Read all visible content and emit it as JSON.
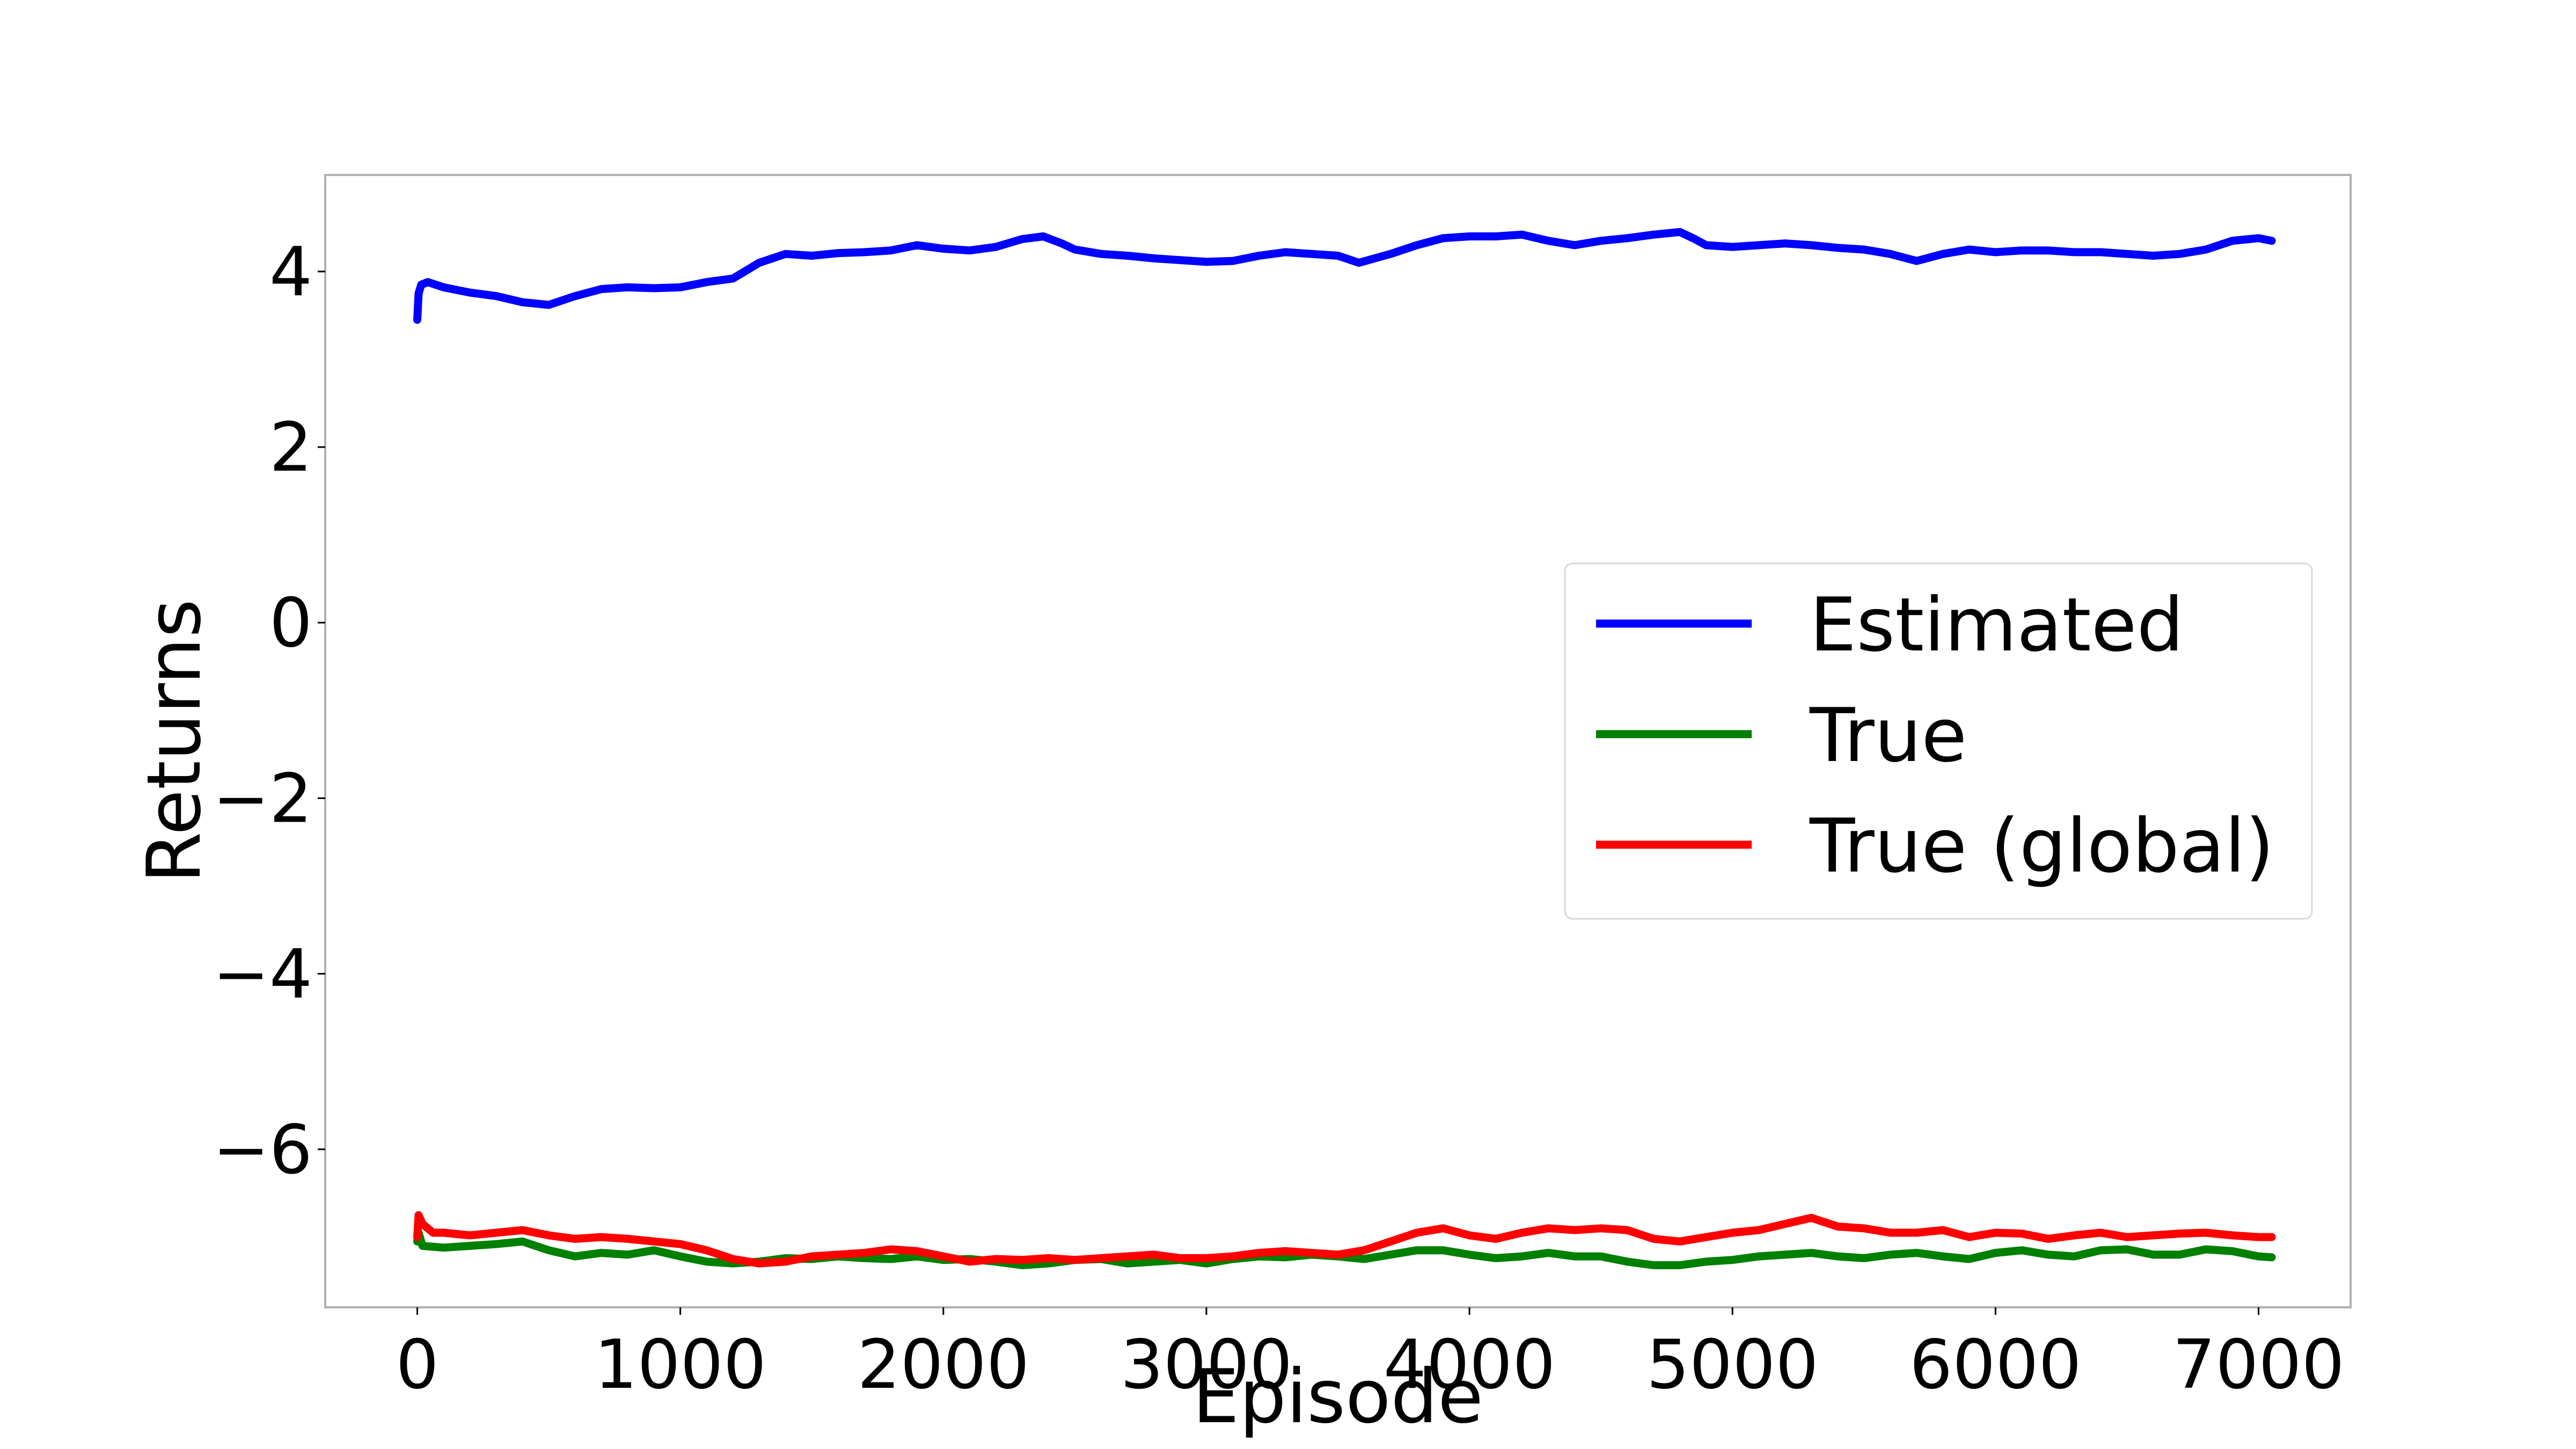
{
  "chart_data": {
    "type": "line",
    "title": "",
    "xlabel": "Episode",
    "ylabel": "Returns",
    "xlim": [
      -350,
      7350
    ],
    "ylim": [
      -7.8,
      5.1
    ],
    "xticks": [
      0,
      1000,
      2000,
      3000,
      4000,
      5000,
      6000,
      7000
    ],
    "xtick_labels": [
      "0",
      "1000",
      "2000",
      "3000",
      "4000",
      "5000",
      "6000",
      "7000"
    ],
    "yticks": [
      4,
      2,
      0,
      -2,
      -4,
      -6
    ],
    "ytick_labels": [
      "4",
      "2",
      "0",
      "−2",
      "−4",
      "−6"
    ],
    "grid": false,
    "legend_position": "center-right",
    "series": [
      {
        "name": "Estimated",
        "color": "#0000ff",
        "points": [
          [
            0,
            3.45
          ],
          [
            5,
            3.75
          ],
          [
            15,
            3.85
          ],
          [
            40,
            3.88
          ],
          [
            100,
            3.82
          ],
          [
            200,
            3.76
          ],
          [
            300,
            3.72
          ],
          [
            400,
            3.65
          ],
          [
            500,
            3.62
          ],
          [
            600,
            3.72
          ],
          [
            700,
            3.8
          ],
          [
            800,
            3.82
          ],
          [
            900,
            3.81
          ],
          [
            1000,
            3.82
          ],
          [
            1100,
            3.88
          ],
          [
            1200,
            3.92
          ],
          [
            1300,
            4.1
          ],
          [
            1400,
            4.2
          ],
          [
            1500,
            4.18
          ],
          [
            1600,
            4.21
          ],
          [
            1700,
            4.22
          ],
          [
            1800,
            4.24
          ],
          [
            1900,
            4.3
          ],
          [
            2000,
            4.26
          ],
          [
            2100,
            4.24
          ],
          [
            2200,
            4.28
          ],
          [
            2300,
            4.37
          ],
          [
            2380,
            4.4
          ],
          [
            2450,
            4.32
          ],
          [
            2500,
            4.25
          ],
          [
            2600,
            4.2
          ],
          [
            2700,
            4.18
          ],
          [
            2800,
            4.15
          ],
          [
            2900,
            4.13
          ],
          [
            3000,
            4.11
          ],
          [
            3100,
            4.12
          ],
          [
            3200,
            4.18
          ],
          [
            3300,
            4.22
          ],
          [
            3400,
            4.2
          ],
          [
            3500,
            4.18
          ],
          [
            3580,
            4.1
          ],
          [
            3700,
            4.2
          ],
          [
            3800,
            4.3
          ],
          [
            3900,
            4.38
          ],
          [
            4000,
            4.4
          ],
          [
            4100,
            4.4
          ],
          [
            4200,
            4.42
          ],
          [
            4300,
            4.35
          ],
          [
            4400,
            4.3
          ],
          [
            4500,
            4.35
          ],
          [
            4600,
            4.38
          ],
          [
            4700,
            4.42
          ],
          [
            4800,
            4.45
          ],
          [
            4850,
            4.38
          ],
          [
            4900,
            4.3
          ],
          [
            5000,
            4.28
          ],
          [
            5100,
            4.3
          ],
          [
            5200,
            4.32
          ],
          [
            5300,
            4.3
          ],
          [
            5400,
            4.27
          ],
          [
            5500,
            4.25
          ],
          [
            5600,
            4.2
          ],
          [
            5700,
            4.12
          ],
          [
            5800,
            4.2
          ],
          [
            5900,
            4.25
          ],
          [
            6000,
            4.22
          ],
          [
            6100,
            4.24
          ],
          [
            6200,
            4.24
          ],
          [
            6300,
            4.22
          ],
          [
            6400,
            4.22
          ],
          [
            6500,
            4.2
          ],
          [
            6600,
            4.18
          ],
          [
            6700,
            4.2
          ],
          [
            6800,
            4.25
          ],
          [
            6900,
            4.35
          ],
          [
            7000,
            4.38
          ],
          [
            7050,
            4.35
          ]
        ]
      },
      {
        "name": "True",
        "color": "#008000",
        "points": [
          [
            0,
            -7.05
          ],
          [
            5,
            -6.95
          ],
          [
            20,
            -7.1
          ],
          [
            100,
            -7.12
          ],
          [
            200,
            -7.1
          ],
          [
            300,
            -7.08
          ],
          [
            400,
            -7.05
          ],
          [
            500,
            -7.15
          ],
          [
            600,
            -7.22
          ],
          [
            700,
            -7.18
          ],
          [
            800,
            -7.2
          ],
          [
            900,
            -7.15
          ],
          [
            1000,
            -7.22
          ],
          [
            1100,
            -7.28
          ],
          [
            1200,
            -7.3
          ],
          [
            1300,
            -7.28
          ],
          [
            1400,
            -7.24
          ],
          [
            1500,
            -7.25
          ],
          [
            1600,
            -7.22
          ],
          [
            1700,
            -7.24
          ],
          [
            1800,
            -7.25
          ],
          [
            1900,
            -7.22
          ],
          [
            2000,
            -7.26
          ],
          [
            2100,
            -7.25
          ],
          [
            2200,
            -7.28
          ],
          [
            2300,
            -7.32
          ],
          [
            2400,
            -7.3
          ],
          [
            2500,
            -7.26
          ],
          [
            2600,
            -7.25
          ],
          [
            2700,
            -7.3
          ],
          [
            2800,
            -7.28
          ],
          [
            2900,
            -7.26
          ],
          [
            3000,
            -7.3
          ],
          [
            3100,
            -7.25
          ],
          [
            3200,
            -7.22
          ],
          [
            3300,
            -7.23
          ],
          [
            3400,
            -7.2
          ],
          [
            3500,
            -7.22
          ],
          [
            3600,
            -7.25
          ],
          [
            3700,
            -7.2
          ],
          [
            3800,
            -7.15
          ],
          [
            3900,
            -7.15
          ],
          [
            4000,
            -7.2
          ],
          [
            4100,
            -7.24
          ],
          [
            4200,
            -7.22
          ],
          [
            4300,
            -7.18
          ],
          [
            4400,
            -7.22
          ],
          [
            4500,
            -7.22
          ],
          [
            4600,
            -7.28
          ],
          [
            4700,
            -7.32
          ],
          [
            4800,
            -7.32
          ],
          [
            4900,
            -7.28
          ],
          [
            5000,
            -7.26
          ],
          [
            5100,
            -7.22
          ],
          [
            5200,
            -7.2
          ],
          [
            5300,
            -7.18
          ],
          [
            5400,
            -7.22
          ],
          [
            5500,
            -7.24
          ],
          [
            5600,
            -7.2
          ],
          [
            5700,
            -7.18
          ],
          [
            5800,
            -7.22
          ],
          [
            5900,
            -7.25
          ],
          [
            6000,
            -7.18
          ],
          [
            6100,
            -7.15
          ],
          [
            6200,
            -7.2
          ],
          [
            6300,
            -7.22
          ],
          [
            6400,
            -7.15
          ],
          [
            6500,
            -7.14
          ],
          [
            6600,
            -7.2
          ],
          [
            6700,
            -7.2
          ],
          [
            6800,
            -7.14
          ],
          [
            6900,
            -7.16
          ],
          [
            7000,
            -7.22
          ],
          [
            7050,
            -7.23
          ]
        ]
      },
      {
        "name": "True (global)",
        "color": "#ff0000",
        "points": [
          [
            0,
            -7.0
          ],
          [
            5,
            -6.75
          ],
          [
            20,
            -6.85
          ],
          [
            60,
            -6.95
          ],
          [
            100,
            -6.95
          ],
          [
            200,
            -6.98
          ],
          [
            300,
            -6.95
          ],
          [
            400,
            -6.92
          ],
          [
            500,
            -6.98
          ],
          [
            600,
            -7.02
          ],
          [
            700,
            -7.0
          ],
          [
            800,
            -7.02
          ],
          [
            900,
            -7.05
          ],
          [
            1000,
            -7.08
          ],
          [
            1100,
            -7.15
          ],
          [
            1200,
            -7.25
          ],
          [
            1300,
            -7.3
          ],
          [
            1400,
            -7.28
          ],
          [
            1500,
            -7.22
          ],
          [
            1600,
            -7.2
          ],
          [
            1700,
            -7.18
          ],
          [
            1800,
            -7.14
          ],
          [
            1900,
            -7.16
          ],
          [
            2000,
            -7.22
          ],
          [
            2100,
            -7.28
          ],
          [
            2200,
            -7.25
          ],
          [
            2300,
            -7.26
          ],
          [
            2400,
            -7.24
          ],
          [
            2500,
            -7.26
          ],
          [
            2600,
            -7.24
          ],
          [
            2700,
            -7.22
          ],
          [
            2800,
            -7.2
          ],
          [
            2900,
            -7.24
          ],
          [
            3000,
            -7.24
          ],
          [
            3100,
            -7.22
          ],
          [
            3200,
            -7.18
          ],
          [
            3300,
            -7.16
          ],
          [
            3400,
            -7.18
          ],
          [
            3500,
            -7.2
          ],
          [
            3600,
            -7.15
          ],
          [
            3700,
            -7.05
          ],
          [
            3800,
            -6.95
          ],
          [
            3900,
            -6.9
          ],
          [
            4000,
            -6.98
          ],
          [
            4100,
            -7.02
          ],
          [
            4200,
            -6.95
          ],
          [
            4300,
            -6.9
          ],
          [
            4400,
            -6.92
          ],
          [
            4500,
            -6.9
          ],
          [
            4600,
            -6.92
          ],
          [
            4700,
            -7.02
          ],
          [
            4800,
            -7.05
          ],
          [
            4900,
            -7.0
          ],
          [
            5000,
            -6.95
          ],
          [
            5100,
            -6.92
          ],
          [
            5200,
            -6.85
          ],
          [
            5300,
            -6.78
          ],
          [
            5400,
            -6.88
          ],
          [
            5500,
            -6.9
          ],
          [
            5600,
            -6.95
          ],
          [
            5700,
            -6.95
          ],
          [
            5800,
            -6.92
          ],
          [
            5900,
            -7.0
          ],
          [
            6000,
            -6.95
          ],
          [
            6100,
            -6.96
          ],
          [
            6200,
            -7.02
          ],
          [
            6300,
            -6.98
          ],
          [
            6400,
            -6.95
          ],
          [
            6500,
            -7.0
          ],
          [
            6600,
            -6.98
          ],
          [
            6700,
            -6.96
          ],
          [
            6800,
            -6.95
          ],
          [
            6900,
            -6.98
          ],
          [
            7000,
            -7.0
          ],
          [
            7050,
            -7.0
          ]
        ]
      }
    ]
  }
}
